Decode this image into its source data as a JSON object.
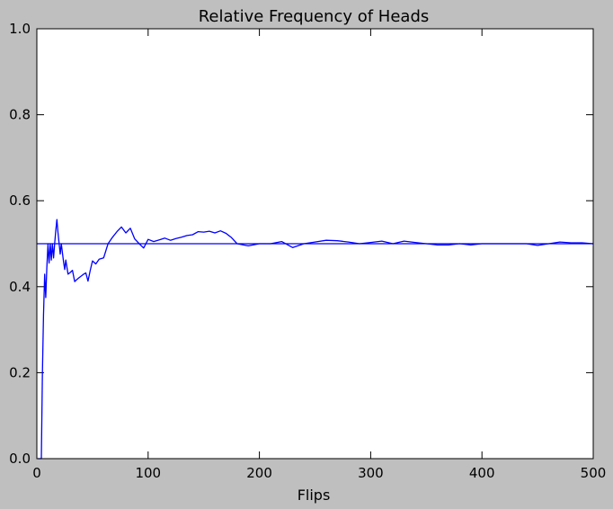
{
  "colors": {
    "figure_background": "#bfbfbf",
    "axes_background": "#ffffff",
    "line": "#0000ff"
  },
  "chart_data": {
    "type": "line",
    "title": "Relative Frequency of Heads",
    "xlabel": "Flips",
    "ylabel": "",
    "xlim": [
      0,
      500
    ],
    "ylim": [
      0.0,
      1.0
    ],
    "grid": false,
    "xticks": [
      0,
      100,
      200,
      300,
      400,
      500
    ],
    "xtick_labels": [
      "0",
      "100",
      "200",
      "300",
      "400",
      "500"
    ],
    "yticks": [
      0.0,
      0.2,
      0.4,
      0.6,
      0.8,
      1.0
    ],
    "ytick_labels": [
      "0.0",
      "0.2",
      "0.4",
      "0.6",
      "0.8",
      "1.0"
    ],
    "reference_line": {
      "y": 0.5
    },
    "series": [
      {
        "x": [
          1,
          2,
          3,
          4,
          5,
          6,
          7,
          8,
          9,
          10,
          11,
          12,
          13,
          14,
          15,
          16,
          17,
          18,
          19,
          20,
          21,
          22,
          23,
          24,
          25,
          26,
          28,
          30,
          32,
          34,
          36,
          38,
          40,
          42,
          44,
          46,
          48,
          50,
          53,
          56,
          60,
          64,
          68,
          72,
          76,
          80,
          84,
          88,
          92,
          96,
          100,
          105,
          110,
          115,
          120,
          125,
          130,
          135,
          140,
          145,
          150,
          155,
          160,
          165,
          170,
          175,
          180,
          190,
          200,
          210,
          220,
          230,
          240,
          250,
          260,
          270,
          280,
          290,
          300,
          310,
          320,
          330,
          340,
          350,
          360,
          370,
          380,
          390,
          400,
          410,
          420,
          430,
          440,
          450,
          460,
          470,
          480,
          490,
          500
        ],
        "y": [
          0.0,
          0.0,
          0.0,
          0.0,
          0.2,
          0.333,
          0.429,
          0.375,
          0.444,
          0.5,
          0.455,
          0.5,
          0.462,
          0.5,
          0.467,
          0.5,
          0.529,
          0.556,
          0.526,
          0.5,
          0.476,
          0.5,
          0.478,
          0.458,
          0.44,
          0.462,
          0.429,
          0.433,
          0.438,
          0.412,
          0.417,
          0.421,
          0.425,
          0.429,
          0.432,
          0.413,
          0.438,
          0.46,
          0.453,
          0.464,
          0.467,
          0.5,
          0.515,
          0.528,
          0.539,
          0.525,
          0.536,
          0.511,
          0.5,
          0.49,
          0.51,
          0.505,
          0.509,
          0.513,
          0.508,
          0.512,
          0.515,
          0.519,
          0.521,
          0.528,
          0.527,
          0.529,
          0.525,
          0.53,
          0.524,
          0.514,
          0.5,
          0.495,
          0.5,
          0.5,
          0.505,
          0.491,
          0.5,
          0.504,
          0.508,
          0.507,
          0.504,
          0.5,
          0.503,
          0.506,
          0.5,
          0.506,
          0.503,
          0.5,
          0.497,
          0.497,
          0.5,
          0.497,
          0.5,
          0.5,
          0.5,
          0.5,
          0.5,
          0.496,
          0.5,
          0.504,
          0.502,
          0.502,
          0.5
        ]
      }
    ]
  }
}
